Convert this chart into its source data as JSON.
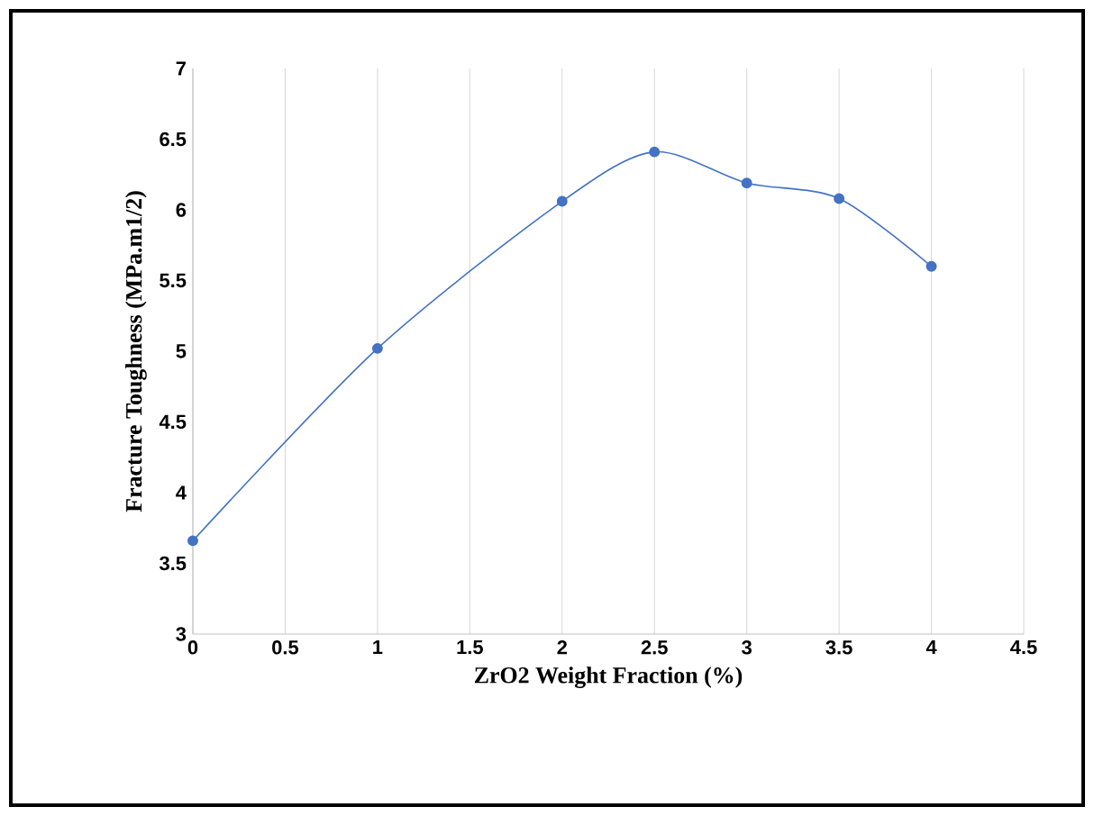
{
  "chart_data": {
    "type": "line",
    "xlabel": "ZrO2 Weight Fraction (%)",
    "ylabel": "Fracture Toughness (MPa.m1/2)",
    "x": [
      0,
      1,
      2,
      2.5,
      3,
      3.5,
      4
    ],
    "series": [
      {
        "color": "#4472c4",
        "values": [
          3.66,
          5.02,
          6.06,
          6.41,
          6.19,
          6.08,
          5.6
        ]
      }
    ],
    "xlim": [
      0,
      4.5
    ],
    "ylim": [
      3,
      7
    ],
    "xticks": [
      0,
      0.5,
      1,
      1.5,
      2,
      2.5,
      3,
      3.5,
      4,
      4.5
    ],
    "yticks": [
      3,
      3.5,
      4,
      4.5,
      5,
      5.5,
      6,
      6.5,
      7
    ],
    "grid": "x",
    "marker": "circle",
    "line_style": "solid",
    "legend": false
  }
}
